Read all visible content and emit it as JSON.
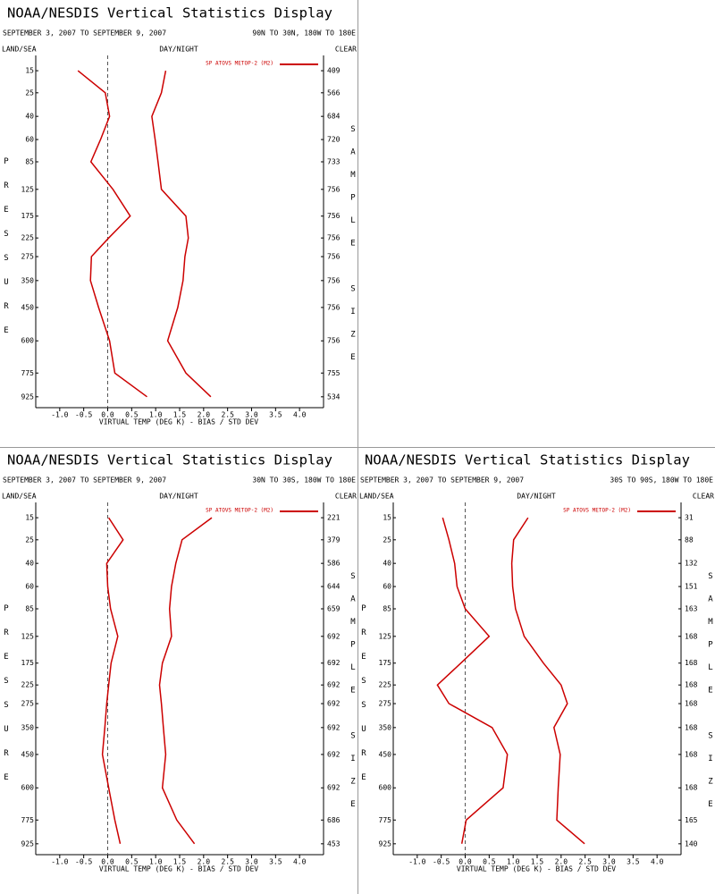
{
  "chart_data": [
    {
      "type": "line",
      "title": "NOAA/NESDIS Vertical Statistics Display",
      "subtitle": "SEPTEMBER 3, 2007 TO SEPTEMBER 9, 2007",
      "region": "90N TO 30N, 180W TO 180E",
      "left_label": "LAND/SEA",
      "center_label": "DAY/NIGHT",
      "right_label": "CLEAR",
      "ylabel": "PRESSURE",
      "y2label": "SAMPLE SIZE",
      "xlabel": "VIRTUAL TEMP (DEG K) - BIAS / STD DEV",
      "legend": "SP ATOVS METOP-2 (M2)",
      "color": "#cc0000",
      "y": [
        15,
        25,
        40,
        60,
        85,
        125,
        175,
        225,
        275,
        350,
        450,
        600,
        775,
        925
      ],
      "sample_sizes": [
        409,
        566,
        684,
        720,
        733,
        756,
        756,
        756,
        756,
        756,
        756,
        756,
        755,
        534
      ],
      "series": [
        {
          "values": [
            -0.62,
            -0.05,
            0.04,
            -0.15,
            -0.35,
            0.11,
            0.47,
            0.02,
            -0.34,
            -0.36,
            -0.19,
            0.04,
            0.15,
            0.82
          ]
        },
        {
          "values": [
            1.21,
            1.12,
            0.92,
            0.99,
            1.05,
            1.12,
            1.63,
            1.68,
            1.61,
            1.57,
            1.46,
            1.25,
            1.63,
            2.15
          ]
        }
      ],
      "xlim": [
        -1.5,
        4.5
      ],
      "xticks": [
        {
          "value": -1,
          "label": "-1.0"
        },
        -0.5,
        {
          "value": 0,
          "label": "0.0"
        },
        0.5,
        {
          "value": 1,
          "label": "1.0"
        },
        1.5,
        {
          "value": 2,
          "label": "2.0"
        },
        2.5,
        {
          "value": 3,
          "label": "3.0"
        },
        3.5,
        {
          "value": 4,
          "label": "4.0"
        }
      ],
      "ylim": [
        1000,
        10
      ],
      "zero_line": 0
    },
    {
      "type": "line",
      "title": "NOAA/NESDIS Vertical Statistics Display",
      "subtitle": "SEPTEMBER 3, 2007 TO SEPTEMBER 9, 2007",
      "region": "30N TO 30S, 180W TO 180E",
      "left_label": "LAND/SEA",
      "center_label": "DAY/NIGHT",
      "right_label": "CLEAR",
      "ylabel": "PRESSURE",
      "y2label": "SAMPLE SIZE",
      "xlabel": "VIRTUAL TEMP (DEG K) - BIAS / STD DEV",
      "legend": "SP ATOVS METOP-2 (M2)",
      "color": "#cc0000",
      "y": [
        15,
        25,
        40,
        60,
        85,
        125,
        175,
        225,
        275,
        350,
        450,
        600,
        775,
        925
      ],
      "sample_sizes": [
        221,
        379,
        586,
        644,
        659,
        692,
        692,
        692,
        692,
        692,
        692,
        692,
        686,
        453
      ],
      "series": [
        {
          "values": [
            0.02,
            0.32,
            -0.02,
            0.0,
            0.06,
            0.21,
            0.07,
            0.02,
            -0.02,
            -0.06,
            -0.11,
            0.02,
            0.15,
            0.26
          ]
        },
        {
          "values": [
            2.17,
            1.55,
            1.42,
            1.33,
            1.29,
            1.33,
            1.14,
            1.08,
            1.12,
            1.16,
            1.21,
            1.14,
            1.44,
            1.81
          ]
        }
      ],
      "xlim": [
        -1.5,
        4.5
      ],
      "xticks": [
        {
          "value": -1,
          "label": "-1.0"
        },
        -0.5,
        {
          "value": 0,
          "label": "0.0"
        },
        0.5,
        {
          "value": 1,
          "label": "1.0"
        },
        1.5,
        {
          "value": 2,
          "label": "2.0"
        },
        2.5,
        {
          "value": 3,
          "label": "3.0"
        },
        3.5,
        {
          "value": 4,
          "label": "4.0"
        }
      ],
      "ylim": [
        1000,
        10
      ],
      "zero_line": 0
    },
    {
      "type": "line",
      "title": "NOAA/NESDIS Vertical Statistics Display",
      "subtitle": "SEPTEMBER 3, 2007 TO SEPTEMBER 9, 2007",
      "region": "30S TO 90S, 180W TO 180E",
      "left_label": "LAND/SEA",
      "center_label": "DAY/NIGHT",
      "right_label": "CLEAR",
      "ylabel": "PRESSURE",
      "y2label": "SAMPLE SIZE",
      "xlabel": "VIRTUAL TEMP (DEG K) - BIAS / STD DEV",
      "legend": "SP ATOVS METOP-2 (M2)",
      "color": "#cc0000",
      "y": [
        15,
        25,
        40,
        60,
        85,
        125,
        175,
        225,
        275,
        350,
        450,
        600,
        775,
        925
      ],
      "sample_sizes": [
        31,
        88,
        132,
        151,
        163,
        168,
        168,
        168,
        168,
        168,
        168,
        168,
        165,
        140
      ],
      "series": [
        {
          "values": [
            -0.47,
            -0.34,
            -0.22,
            -0.17,
            0.0,
            0.5,
            -0.09,
            -0.58,
            -0.34,
            0.56,
            0.88,
            0.79,
            0.02,
            -0.07
          ]
        },
        {
          "values": [
            1.31,
            1.01,
            0.97,
            0.99,
            1.05,
            1.23,
            1.63,
            2.0,
            2.13,
            1.85,
            1.98,
            1.94,
            1.91,
            2.49
          ]
        }
      ],
      "xlim": [
        -1.5,
        4.5
      ],
      "xticks": [
        {
          "value": -1,
          "label": "-1.0"
        },
        -0.5,
        {
          "value": 0,
          "label": "0.0"
        },
        0.5,
        {
          "value": 1,
          "label": "1.0"
        },
        1.5,
        {
          "value": 2,
          "label": "2.0"
        },
        2.5,
        {
          "value": 3,
          "label": "3.0"
        },
        3.5,
        {
          "value": 4,
          "label": "4.0"
        }
      ],
      "ylim": [
        1000,
        10
      ],
      "zero_line": 0
    }
  ]
}
